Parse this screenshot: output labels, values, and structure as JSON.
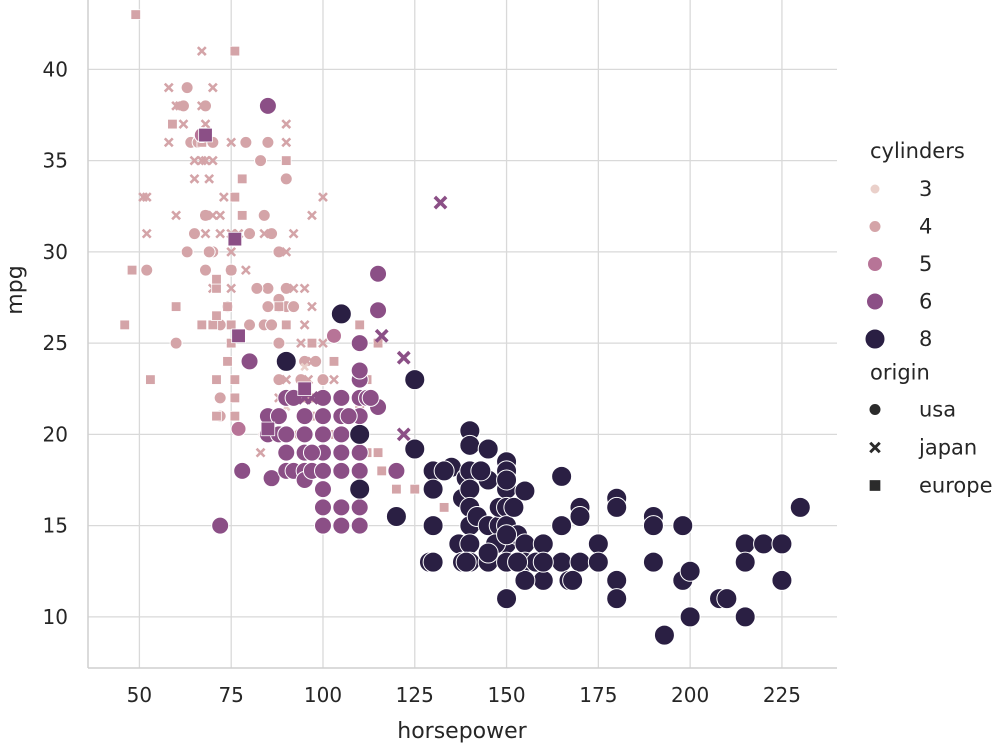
{
  "chart_data": {
    "type": "scatter",
    "title": "",
    "xlabel": "horsepower",
    "ylabel": "mpg",
    "xlim": [
      36,
      240
    ],
    "ylim": [
      7.2,
      43.8
    ],
    "x_ticks": [
      50,
      75,
      100,
      125,
      150,
      175,
      200,
      225
    ],
    "y_ticks": [
      10,
      15,
      20,
      25,
      30,
      35,
      40
    ],
    "grid": true,
    "legend_position": "right",
    "legend": {
      "hue_title": "cylinders",
      "hue_levels": [
        {
          "label": "3",
          "color": "#ead0ca"
        },
        {
          "label": "4",
          "color": "#d4a4a8"
        },
        {
          "label": "5",
          "color": "#b77497"
        },
        {
          "label": "6",
          "color": "#8b4f86"
        },
        {
          "label": "8",
          "color": "#2a1f43"
        }
      ],
      "style_title": "origin",
      "style_levels": [
        {
          "label": "usa",
          "marker": "circle"
        },
        {
          "label": "japan",
          "marker": "x"
        },
        {
          "label": "europe",
          "marker": "square"
        }
      ]
    },
    "series": [
      {
        "cylinders": "4",
        "origin": "usa",
        "points": [
          [
            88,
            27
          ],
          [
            88,
            27.4
          ],
          [
            90,
            28
          ],
          [
            90,
            27
          ],
          [
            92,
            27
          ],
          [
            85,
            27
          ],
          [
            85,
            28
          ],
          [
            84,
            26
          ],
          [
            82,
            28
          ],
          [
            86,
            26
          ],
          [
            88,
            25
          ],
          [
            90,
            24
          ],
          [
            95,
            24
          ],
          [
            88,
            23
          ],
          [
            94,
            23
          ],
          [
            96,
            22
          ],
          [
            98,
            24
          ],
          [
            100,
            23
          ],
          [
            87,
            21
          ],
          [
            80,
            26
          ],
          [
            86,
            31
          ],
          [
            88,
            30
          ],
          [
            80,
            31
          ],
          [
            84,
            32
          ],
          [
            85,
            36
          ],
          [
            90,
            34
          ],
          [
            83,
            35
          ],
          [
            79,
            36
          ],
          [
            70,
            36
          ],
          [
            68,
            38
          ],
          [
            63,
            39
          ],
          [
            62,
            38
          ],
          [
            64,
            36
          ],
          [
            66,
            36
          ],
          [
            70,
            36
          ],
          [
            68,
            32
          ],
          [
            70,
            30
          ],
          [
            68,
            29
          ],
          [
            75,
            29
          ],
          [
            74,
            27
          ],
          [
            72,
            26
          ],
          [
            72,
            22
          ],
          [
            72,
            21
          ],
          [
            69,
            30
          ],
          [
            65,
            31
          ],
          [
            63,
            30
          ],
          [
            60,
            25
          ],
          [
            52,
            29
          ],
          [
            84,
            20
          ]
        ]
      },
      {
        "cylinders": "4",
        "origin": "japan",
        "points": [
          [
            67,
            41
          ],
          [
            70,
            39
          ],
          [
            58,
            39
          ],
          [
            60,
            38
          ],
          [
            61,
            38
          ],
          [
            67,
            38
          ],
          [
            68,
            37
          ],
          [
            62,
            37
          ],
          [
            58,
            36
          ],
          [
            67,
            36
          ],
          [
            75,
            36
          ],
          [
            68,
            35
          ],
          [
            65,
            34
          ],
          [
            70,
            35
          ],
          [
            90,
            36
          ],
          [
            90,
            37
          ],
          [
            100,
            33
          ],
          [
            97,
            32
          ],
          [
            92,
            31
          ],
          [
            84,
            31
          ],
          [
            70,
            32
          ],
          [
            68,
            32
          ],
          [
            68,
            31
          ],
          [
            75,
            30
          ],
          [
            75,
            31
          ],
          [
            72,
            31
          ],
          [
            79,
            29
          ],
          [
            75,
            28
          ],
          [
            70,
            28
          ],
          [
            75,
            29
          ],
          [
            72,
            32
          ],
          [
            52,
            31
          ],
          [
            52,
            33
          ],
          [
            51,
            33
          ],
          [
            65,
            35
          ],
          [
            60,
            32
          ],
          [
            90,
            30
          ],
          [
            92,
            28
          ],
          [
            95,
            26
          ],
          [
            94,
            25
          ],
          [
            97,
            24
          ],
          [
            96,
            23
          ],
          [
            88,
            22
          ],
          [
            90,
            23
          ],
          [
            92,
            20
          ],
          [
            85,
            21
          ],
          [
            87,
            20
          ],
          [
            83,
            19
          ],
          [
            67,
            35
          ],
          [
            69,
            34
          ],
          [
            73,
            33
          ],
          [
            77,
            31
          ],
          [
            100,
            25
          ],
          [
            103,
            23
          ],
          [
            95,
            28
          ],
          [
            97,
            27
          ]
        ]
      },
      {
        "cylinders": "4",
        "origin": "europe",
        "points": [
          [
            49,
            43
          ],
          [
            76,
            41
          ],
          [
            59,
            37
          ],
          [
            67,
            36
          ],
          [
            78,
            34
          ],
          [
            90,
            35
          ],
          [
            78,
            32
          ],
          [
            76,
            33
          ],
          [
            46,
            26
          ],
          [
            48,
            29
          ],
          [
            53,
            23
          ],
          [
            60,
            27
          ],
          [
            67,
            26
          ],
          [
            70,
            26
          ],
          [
            71,
            28
          ],
          [
            74,
            27
          ],
          [
            75,
            26
          ],
          [
            76,
            23
          ],
          [
            74,
            24
          ],
          [
            75,
            25
          ],
          [
            76,
            22
          ],
          [
            76,
            21
          ],
          [
            88,
            27
          ],
          [
            90,
            26
          ],
          [
            97,
            25
          ],
          [
            98,
            22
          ],
          [
            103,
            24
          ],
          [
            108,
            21
          ],
          [
            110,
            20
          ],
          [
            112,
            19
          ],
          [
            115,
            19
          ],
          [
            112,
            23
          ],
          [
            116,
            18
          ],
          [
            120,
            17
          ],
          [
            125,
            17
          ],
          [
            133,
            16
          ],
          [
            71,
            23
          ],
          [
            71,
            21
          ],
          [
            71,
            28.5
          ],
          [
            71,
            26.5
          ],
          [
            110,
            26
          ],
          [
            115,
            25
          ],
          [
            95,
            22
          ],
          [
            97,
            21
          ],
          [
            103,
            20
          ],
          [
            110,
            21.5
          ]
        ]
      },
      {
        "cylinders": "3",
        "origin": "japan",
        "points": [
          [
            90,
            21.5
          ],
          [
            95,
            23.7
          ],
          [
            100,
            18
          ],
          [
            110,
            21.5
          ]
        ]
      },
      {
        "cylinders": "5",
        "origin": "usa",
        "points": [
          [
            103,
            25.4
          ],
          [
            77,
            20.3
          ],
          [
            67,
            36.4
          ]
        ]
      },
      {
        "cylinders": "6",
        "origin": "usa",
        "points": [
          [
            85,
            38
          ],
          [
            72,
            15
          ],
          [
            78,
            18
          ],
          [
            86,
            17.6
          ],
          [
            85,
            20
          ],
          [
            85,
            21
          ],
          [
            88,
            20
          ],
          [
            88,
            21
          ],
          [
            90,
            20
          ],
          [
            90,
            19
          ],
          [
            90,
            18
          ],
          [
            92,
            18
          ],
          [
            95,
            18
          ],
          [
            95,
            19
          ],
          [
            95,
            20
          ],
          [
            95,
            21
          ],
          [
            95,
            17.5
          ],
          [
            97,
            18
          ],
          [
            100,
            15
          ],
          [
            100,
            16
          ],
          [
            100,
            17
          ],
          [
            100,
            18
          ],
          [
            100,
            19
          ],
          [
            100,
            20
          ],
          [
            100,
            21
          ],
          [
            105,
            18
          ],
          [
            105,
            19
          ],
          [
            105,
            20
          ],
          [
            105,
            21
          ],
          [
            105,
            22
          ],
          [
            110,
            15
          ],
          [
            110,
            16
          ],
          [
            110,
            17
          ],
          [
            110,
            18
          ],
          [
            110,
            19
          ],
          [
            110,
            20
          ],
          [
            110,
            21
          ],
          [
            110,
            22
          ],
          [
            110,
            23
          ],
          [
            110,
            25
          ],
          [
            115,
            28.8
          ],
          [
            115,
            26.8
          ],
          [
            115,
            21.5
          ],
          [
            107,
            21
          ],
          [
            112,
            22
          ],
          [
            113,
            22
          ],
          [
            100,
            22
          ],
          [
            105,
            16
          ],
          [
            120,
            18
          ],
          [
            110,
            23.5
          ],
          [
            100,
            17
          ],
          [
            97,
            19
          ],
          [
            90,
            22
          ],
          [
            92,
            22
          ],
          [
            80,
            24
          ],
          [
            105,
            15
          ],
          [
            165,
            17.7
          ]
        ]
      },
      {
        "cylinders": "6",
        "origin": "japan",
        "points": [
          [
            132,
            32.7
          ],
          [
            116,
            25.4
          ],
          [
            122,
            24.2
          ],
          [
            122,
            20
          ],
          [
            97,
            22
          ],
          [
            95,
            22
          ]
        ]
      },
      {
        "cylinders": "6",
        "origin": "europe",
        "points": [
          [
            76,
            30.7
          ],
          [
            68,
            36.4
          ],
          [
            95,
            22.5
          ],
          [
            77,
            25.4
          ],
          [
            85,
            20.3
          ]
        ]
      },
      {
        "cylinders": "8",
        "origin": "usa",
        "points": [
          [
            105,
            26.6
          ],
          [
            90,
            24
          ],
          [
            110,
            20
          ],
          [
            110,
            17
          ],
          [
            120,
            15.5
          ],
          [
            125,
            23
          ],
          [
            125,
            19.2
          ],
          [
            130,
            18
          ],
          [
            130,
            17
          ],
          [
            130,
            15
          ],
          [
            129,
            13
          ],
          [
            130,
            13
          ],
          [
            135,
            18.2
          ],
          [
            137,
            14
          ],
          [
            138,
            16.5
          ],
          [
            139,
            17.6
          ],
          [
            140,
            20.2
          ],
          [
            140,
            19.4
          ],
          [
            140,
            18
          ],
          [
            140,
            17
          ],
          [
            140,
            16
          ],
          [
            140,
            15
          ],
          [
            140,
            14
          ],
          [
            140,
            13
          ],
          [
            142,
            15.5
          ],
          [
            145,
            19.2
          ],
          [
            145,
            17.5
          ],
          [
            145,
            15
          ],
          [
            145,
            13
          ],
          [
            148,
            15
          ],
          [
            148,
            16
          ],
          [
            150,
            18.5
          ],
          [
            150,
            18
          ],
          [
            150,
            17
          ],
          [
            150,
            16
          ],
          [
            150,
            15
          ],
          [
            150,
            14
          ],
          [
            150,
            13
          ],
          [
            150,
            11
          ],
          [
            152,
            16
          ],
          [
            153,
            14.5
          ],
          [
            155,
            14
          ],
          [
            155,
            13
          ],
          [
            158,
            13
          ],
          [
            160,
            14
          ],
          [
            160,
            12
          ],
          [
            165,
            15
          ],
          [
            165,
            13
          ],
          [
            167,
            12
          ],
          [
            170,
            16
          ],
          [
            170,
            15.5
          ],
          [
            170,
            13
          ],
          [
            175,
            14
          ],
          [
            175,
            13
          ],
          [
            180,
            16.5
          ],
          [
            180,
            16
          ],
          [
            180,
            12
          ],
          [
            180,
            11
          ],
          [
            190,
            15.5
          ],
          [
            190,
            15
          ],
          [
            190,
            13
          ],
          [
            198,
            15
          ],
          [
            198,
            12
          ],
          [
            200,
            10
          ],
          [
            193,
            9
          ],
          [
            208,
            11
          ],
          [
            210,
            11
          ],
          [
            215,
            14
          ],
          [
            215,
            13
          ],
          [
            215,
            10
          ],
          [
            220,
            14
          ],
          [
            225,
            14
          ],
          [
            225,
            12
          ],
          [
            230,
            16
          ],
          [
            155,
            12
          ],
          [
            165,
            17.7
          ],
          [
            147,
            14
          ],
          [
            143,
            18
          ],
          [
            133,
            18
          ],
          [
            160,
            13
          ],
          [
            138,
            13
          ],
          [
            150,
            14.5
          ],
          [
            155,
            16.9
          ],
          [
            150,
            17.5
          ],
          [
            145,
            13.5
          ],
          [
            153,
            13
          ],
          [
            168,
            12
          ],
          [
            139,
            13
          ],
          [
            200,
            12.5
          ]
        ]
      }
    ]
  }
}
